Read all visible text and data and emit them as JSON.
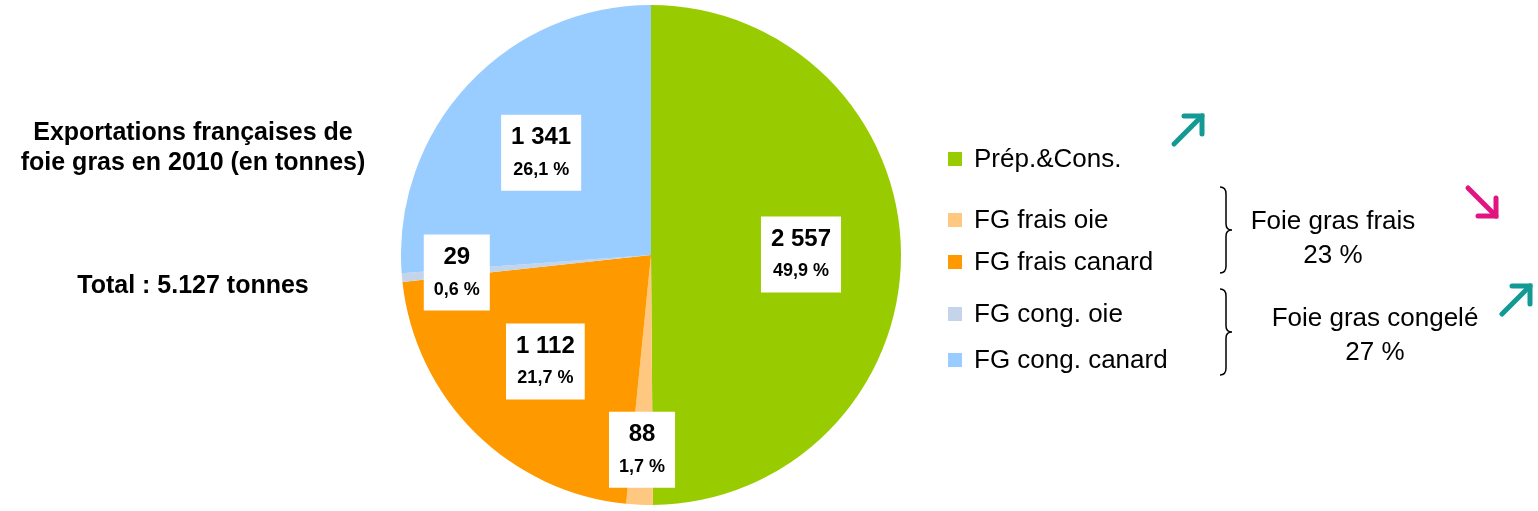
{
  "chart_data": {
    "type": "pie",
    "title": "Exportations françaises de foie gras en 2010 (en tonnes)",
    "categories": [
      "Prép.&Cons.",
      "FG frais oie",
      "FG frais canard",
      "FG cong. oie",
      "FG cong. canard"
    ],
    "values": [
      2557,
      88,
      1112,
      29,
      1341
    ],
    "colors": [
      "#99cc00",
      "#ffc880",
      "#ff9900",
      "#c4d4ea",
      "#99ccff"
    ],
    "value_labels": [
      "2 557\n49,9 %",
      "88\n1,7 %",
      "1 112\n21,7 %",
      "29\n0,6 %",
      "1 341\n26,1 %"
    ],
    "legend": "right",
    "annotations": [
      "Total : 5.127 tonnes",
      "Foie gras frais\n23 %",
      "Foie gras congelé\n27 %"
    ]
  }
}
